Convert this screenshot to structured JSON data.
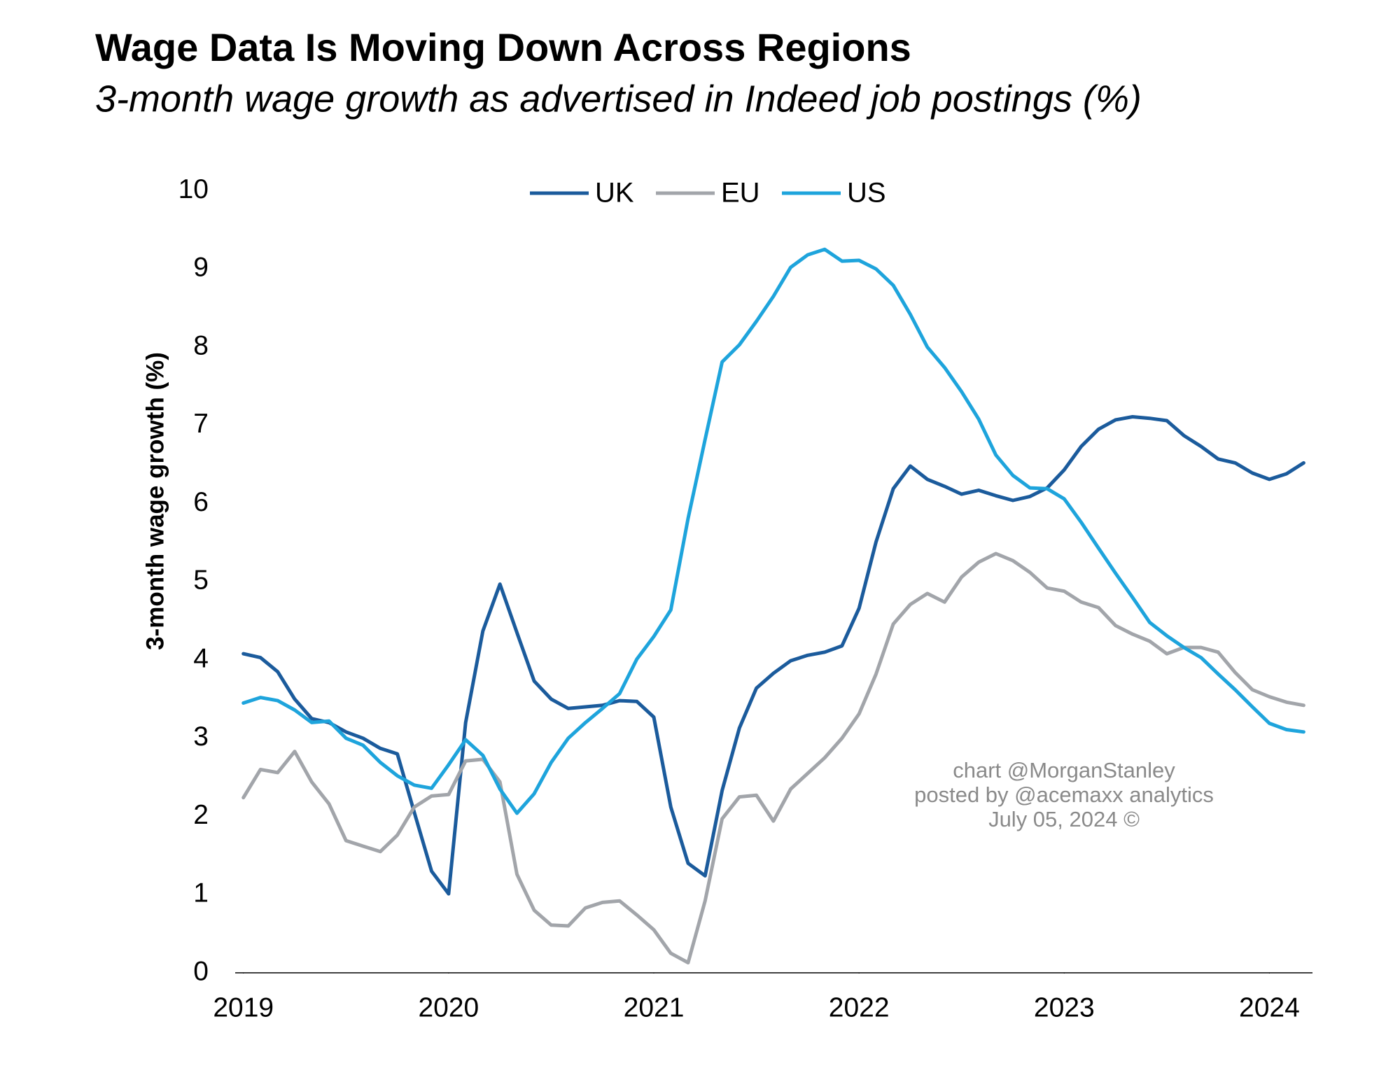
{
  "chart_data": {
    "type": "line",
    "title": "Wage Data Is Moving Down Across Regions",
    "subtitle": "3-month wage growth as advertised in Indeed job postings (%)",
    "y_label": "3-month wage growth (%)",
    "annotations": [
      "chart @MorganStanley",
      "posted by @acemaxx analytics",
      "July 05, 2024 ©"
    ],
    "legend": "top",
    "x": [
      2019,
      2019.083,
      2019.167,
      2019.25,
      2019.333,
      2019.417,
      2019.5,
      2019.583,
      2019.667,
      2019.75,
      2019.833,
      2019.917,
      2020,
      2020.083,
      2020.167,
      2020.25,
      2020.333,
      2020.417,
      2020.5,
      2020.583,
      2020.667,
      2020.75,
      2020.833,
      2020.917,
      2021,
      2021.083,
      2021.167,
      2021.25,
      2021.333,
      2021.417,
      2021.5,
      2021.583,
      2021.667,
      2021.75,
      2021.833,
      2021.917,
      2022,
      2022.083,
      2022.167,
      2022.25,
      2022.333,
      2022.417,
      2022.5,
      2022.583,
      2022.667,
      2022.75,
      2022.833,
      2022.917,
      2023,
      2023.083,
      2023.167,
      2023.25,
      2023.333,
      2023.417,
      2023.5,
      2023.583,
      2023.667,
      2023.75,
      2023.833,
      2023.917,
      2024,
      2024.083,
      2024.167
    ],
    "xlim": [
      2018.96,
      2024.21
    ],
    "xticks": [
      2019,
      2020,
      2021,
      2022,
      2023,
      2024
    ],
    "ylim": [
      0,
      10
    ],
    "yticks": [
      0,
      1,
      2,
      3,
      4,
      5,
      6,
      7,
      8,
      9,
      10
    ],
    "series": [
      {
        "name": "UK",
        "color": "#1b5b9c",
        "values": [
          4.08,
          4.03,
          3.85,
          3.5,
          3.25,
          3.2,
          3.08,
          3.0,
          2.87,
          2.8,
          2.05,
          1.3,
          1.01,
          3.2,
          4.37,
          4.97,
          4.35,
          3.73,
          3.5,
          3.38,
          3.4,
          3.42,
          3.48,
          3.47,
          3.27,
          2.12,
          1.4,
          1.24,
          2.33,
          3.13,
          3.64,
          3.83,
          3.99,
          4.06,
          4.1,
          4.18,
          4.66,
          5.51,
          6.19,
          6.48,
          6.31,
          6.22,
          6.12,
          6.17,
          6.1,
          6.04,
          6.09,
          6.2,
          6.43,
          6.73,
          6.95,
          7.07,
          7.11,
          7.09,
          7.06,
          6.87,
          6.73,
          6.57,
          6.52,
          6.39,
          6.31,
          6.38,
          6.52
        ]
      },
      {
        "name": "EU",
        "color": "#a2a5aa",
        "values": [
          2.24,
          2.6,
          2.56,
          2.83,
          2.44,
          2.16,
          1.69,
          1.62,
          1.55,
          1.76,
          2.12,
          2.26,
          2.28,
          2.71,
          2.73,
          2.44,
          1.26,
          0.8,
          0.61,
          0.6,
          0.83,
          0.9,
          0.92,
          0.74,
          0.55,
          0.25,
          0.13,
          0.92,
          1.97,
          2.25,
          2.27,
          1.94,
          2.35,
          2.55,
          2.75,
          3.0,
          3.31,
          3.82,
          4.46,
          4.71,
          4.85,
          4.74,
          5.06,
          5.25,
          5.36,
          5.27,
          5.12,
          4.92,
          4.88,
          4.74,
          4.67,
          4.44,
          4.33,
          4.24,
          4.08,
          4.16,
          4.16,
          4.1,
          3.84,
          3.62,
          3.53,
          3.46,
          3.42
        ]
      },
      {
        "name": "US",
        "color": "#1ea4dc",
        "values": [
          3.45,
          3.52,
          3.48,
          3.36,
          3.2,
          3.22,
          3.0,
          2.91,
          2.69,
          2.52,
          2.4,
          2.36,
          2.66,
          2.98,
          2.78,
          2.35,
          2.04,
          2.29,
          2.69,
          3.0,
          3.2,
          3.38,
          3.57,
          4.01,
          4.3,
          4.64,
          5.81,
          6.82,
          7.81,
          8.03,
          8.33,
          8.65,
          9.02,
          9.18,
          9.25,
          9.1,
          9.11,
          9.0,
          8.79,
          8.42,
          8.0,
          7.74,
          7.43,
          7.08,
          6.62,
          6.36,
          6.2,
          6.19,
          6.06,
          5.76,
          5.43,
          5.11,
          4.8,
          4.48,
          4.31,
          4.16,
          4.03,
          3.82,
          3.62,
          3.4,
          3.19,
          3.11,
          3.08
        ]
      }
    ]
  }
}
